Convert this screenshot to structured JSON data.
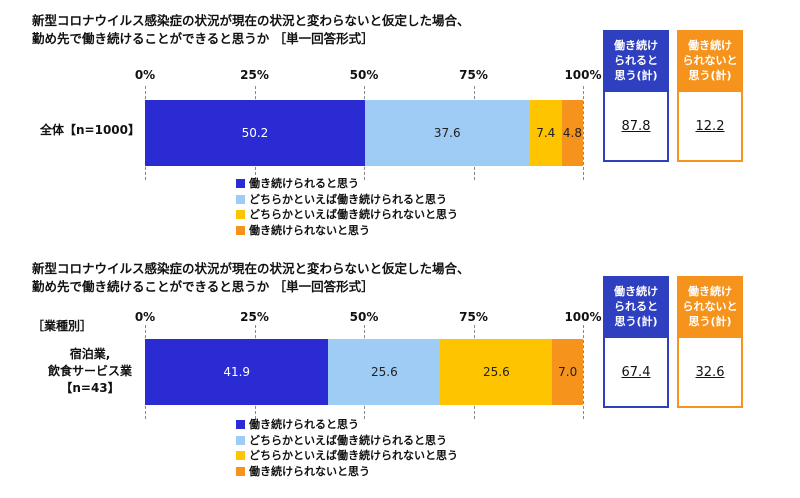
{
  "colors": {
    "series": [
      "#2b2bd4",
      "#9fccf4",
      "#ffc400",
      "#f5931c"
    ],
    "sum_positive": "#2e3fbf",
    "sum_negative": "#f5931c"
  },
  "chart_data": [
    {
      "type": "bar",
      "stacked": true,
      "orientation": "horizontal",
      "title_lines": [
        "新型コロナウイルス感染症の状況が現在の状況と変わらないと仮定した場合、",
        "勤め先で働き続けることができると思うか ［単一回答形式］"
      ],
      "group_label": "",
      "ticks": [
        "0%",
        "25%",
        "50%",
        "75%",
        "100%"
      ],
      "xlim": [
        0,
        100
      ],
      "category_lines": [
        "全体【n=1000】"
      ],
      "series": [
        {
          "name": "働き続けられると思う",
          "value": 50.2,
          "label": "50.2"
        },
        {
          "name": "どちらかといえば働き続けられると思う",
          "value": 37.6,
          "label": "37.6"
        },
        {
          "name": "どちらかといえば働き続けられないと思う",
          "value": 7.4,
          "label": "7.4"
        },
        {
          "name": "働き続けられないと思う",
          "value": 4.8,
          "label": "4.8"
        }
      ],
      "summary": {
        "positive_head": [
          "働き続け",
          "られると",
          "思う(計)"
        ],
        "positive_value": "87.8",
        "negative_head": [
          "働き続け",
          "られないと",
          "思う(計)"
        ],
        "negative_value": "12.2"
      },
      "legend": [
        "働き続けられると思う",
        "どちらかといえば働き続けられると思う",
        "どちらかといえば働き続けられないと思う",
        "働き続けられないと思う"
      ]
    },
    {
      "type": "bar",
      "stacked": true,
      "orientation": "horizontal",
      "title_lines": [
        "新型コロナウイルス感染症の状況が現在の状況と変わらないと仮定した場合、",
        "勤め先で働き続けることができると思うか ［単一回答形式］"
      ],
      "group_label": "［業種別］",
      "ticks": [
        "0%",
        "25%",
        "50%",
        "75%",
        "100%"
      ],
      "xlim": [
        0,
        100
      ],
      "category_lines": [
        "宿泊業,",
        "飲食サービス業",
        "【n=43】"
      ],
      "series": [
        {
          "name": "働き続けられると思う",
          "value": 41.9,
          "label": "41.9"
        },
        {
          "name": "どちらかといえば働き続けられると思う",
          "value": 25.6,
          "label": "25.6"
        },
        {
          "name": "どちらかといえば働き続けられないと思う",
          "value": 25.6,
          "label": "25.6"
        },
        {
          "name": "働き続けられないと思う",
          "value": 7.0,
          "label": "7.0"
        }
      ],
      "summary": {
        "positive_head": [
          "働き続け",
          "られると",
          "思う(計)"
        ],
        "positive_value": "67.4",
        "negative_head": [
          "働き続け",
          "られないと",
          "思う(計)"
        ],
        "negative_value": "32.6"
      },
      "legend": [
        "働き続けられると思う",
        "どちらかといえば働き続けられると思う",
        "どちらかといえば働き続けられないと思う",
        "働き続けられないと思う"
      ]
    }
  ]
}
